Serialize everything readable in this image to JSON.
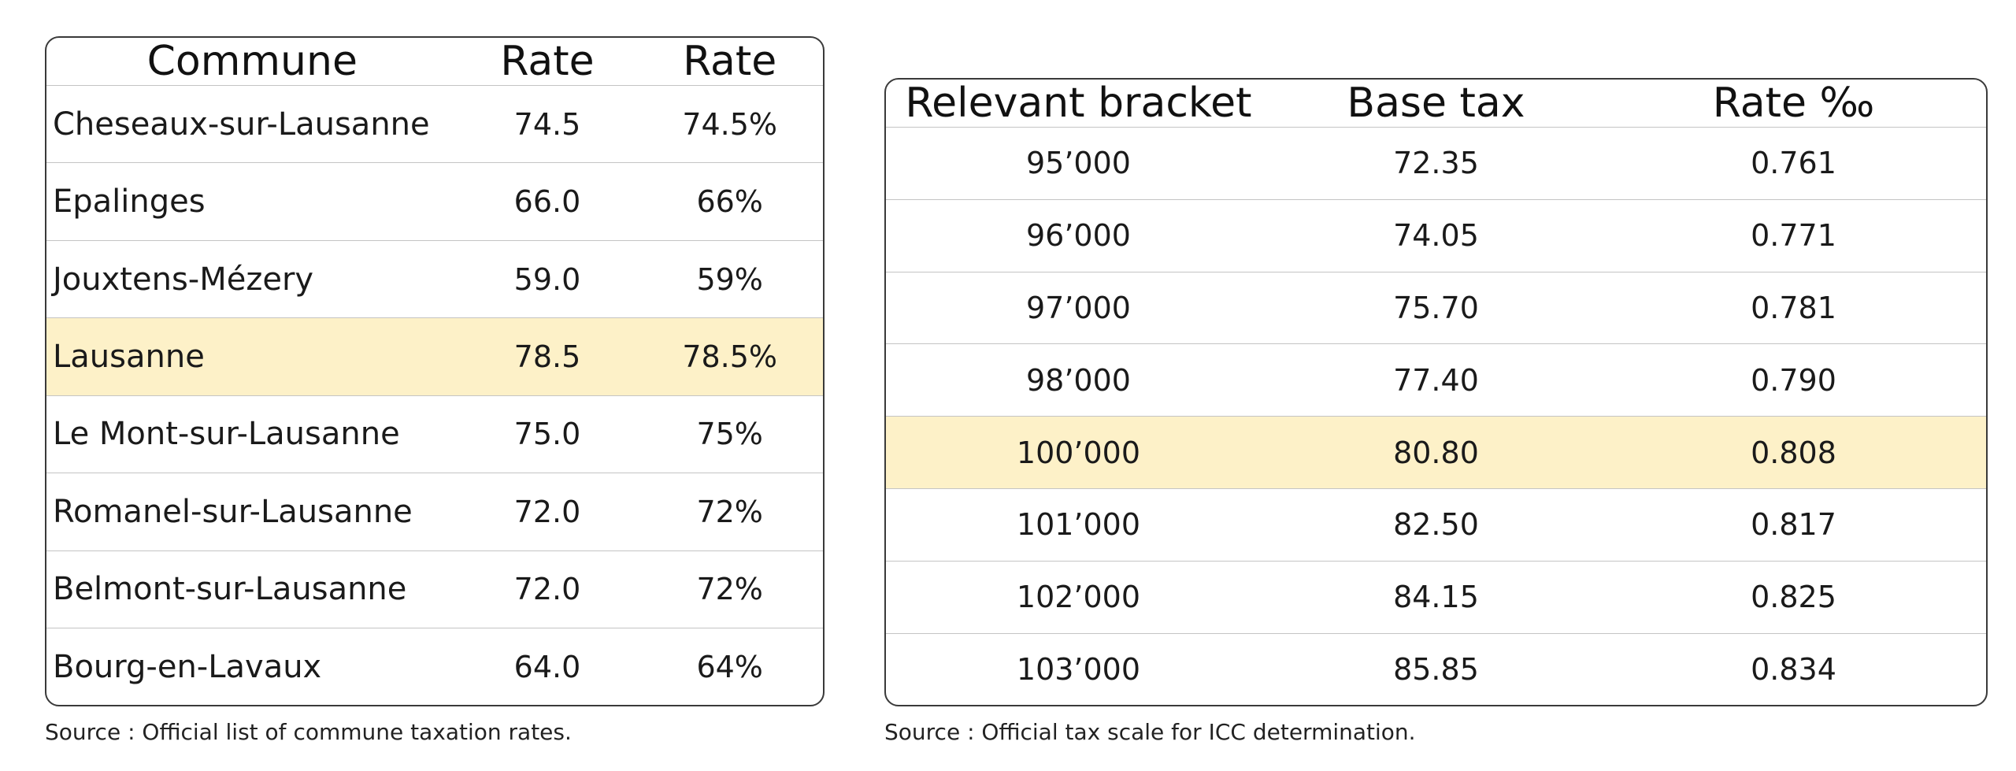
{
  "communes_table": {
    "headers": [
      "Commune",
      "Rate",
      "Rate"
    ],
    "rows": [
      {
        "commune": "Cheseaux-sur-Lausanne",
        "rate": "74.5",
        "rate_pct": "74.5%"
      },
      {
        "commune": "Epalinges",
        "rate": "66.0",
        "rate_pct": "66%"
      },
      {
        "commune": "Jouxtens-Mézery",
        "rate": "59.0",
        "rate_pct": "59%"
      },
      {
        "commune": "Lausanne",
        "rate": "78.5",
        "rate_pct": "78.5%",
        "highlighted": true
      },
      {
        "commune": "Le Mont-sur-Lausanne",
        "rate": "75.0",
        "rate_pct": "75%"
      },
      {
        "commune": "Romanel-sur-Lausanne",
        "rate": "72.0",
        "rate_pct": "72%"
      },
      {
        "commune": "Belmont-sur-Lausanne",
        "rate": "72.0",
        "rate_pct": "72%"
      },
      {
        "commune": "Bourg-en-Lavaux",
        "rate": "64.0",
        "rate_pct": "64%"
      }
    ],
    "source": "Source : Official list of commune taxation rates."
  },
  "tax_scale_table": {
    "headers": [
      "Relevant bracket",
      "Base tax",
      "Rate ‰"
    ],
    "rows": [
      {
        "bracket": "95’000",
        "base_tax": "72.35",
        "rate": "0.761"
      },
      {
        "bracket": "96’000",
        "base_tax": "74.05",
        "rate": "0.771"
      },
      {
        "bracket": "97’000",
        "base_tax": "75.70",
        "rate": "0.781"
      },
      {
        "bracket": "98’000",
        "base_tax": "77.40",
        "rate": "0.790"
      },
      {
        "bracket": "100’000",
        "base_tax": "80.80",
        "rate": "0.808",
        "highlighted": true
      },
      {
        "bracket": "101’000",
        "base_tax": "82.50",
        "rate": "0.817"
      },
      {
        "bracket": "102’000",
        "base_tax": "84.15",
        "rate": "0.825"
      },
      {
        "bracket": "103’000",
        "base_tax": "85.85",
        "rate": "0.834"
      }
    ],
    "source": "Source : Official tax scale for ICC determination."
  },
  "colors": {
    "highlight": "#fdf1c8",
    "border": "#3a3a3a",
    "row_divider": "#c4c4c4"
  }
}
